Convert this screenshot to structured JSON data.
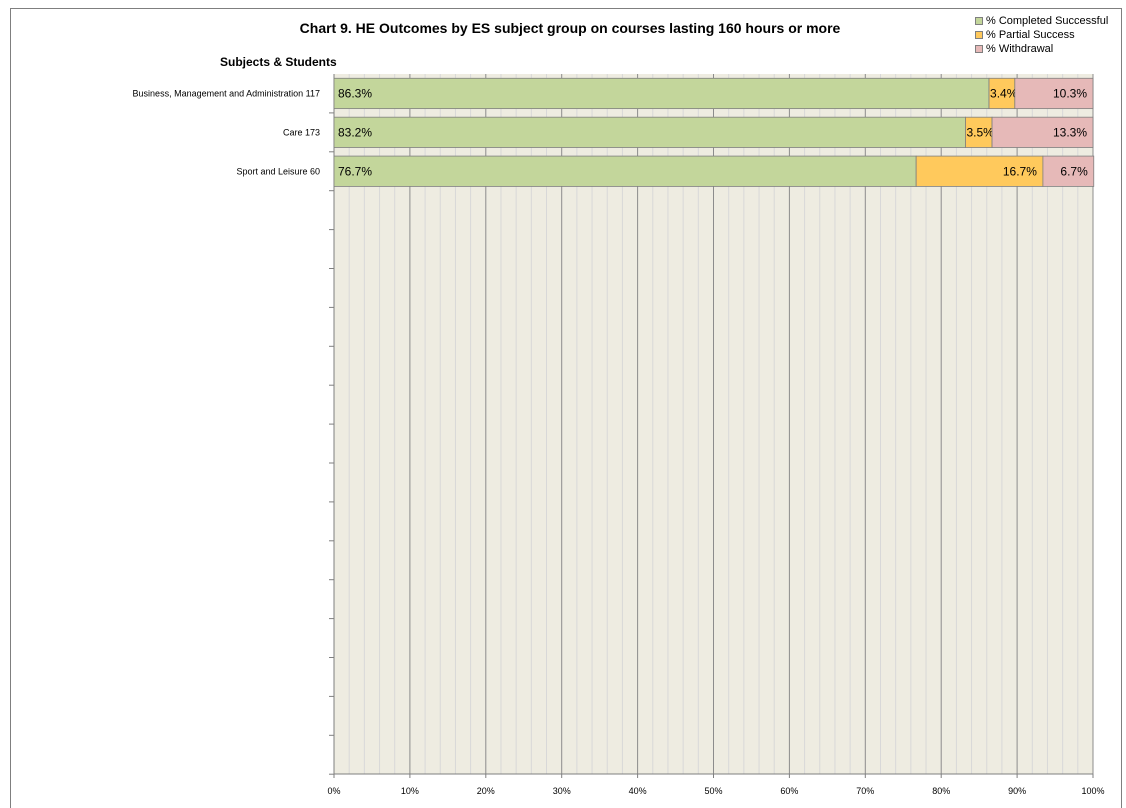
{
  "chart_data": {
    "type": "bar",
    "orientation": "horizontal",
    "stacked": true,
    "title": "Chart 9. HE Outcomes by ES subject group on courses lasting 160 hours or more",
    "group_header": "Subjects & Students",
    "categories": [
      "Business, Management and Administration  117",
      "Care  173",
      "Sport and Leisure  60"
    ],
    "series": [
      {
        "name": "% Completed Successful",
        "color": "#c3d69b",
        "values": [
          86.3,
          83.2,
          76.7
        ],
        "labels": [
          "86.3%",
          "83.2%",
          "76.7%"
        ]
      },
      {
        "name": "% Partial Success",
        "color": "#ffc95c",
        "values": [
          3.4,
          3.5,
          16.7
        ],
        "labels": [
          "3.4%",
          "3.5%",
          "16.7%"
        ]
      },
      {
        "name": "% Withdrawal",
        "color": "#e6b9b8",
        "values": [
          10.3,
          13.3,
          6.7
        ],
        "labels": [
          "10.3%",
          "13.3%",
          "6.7%"
        ]
      }
    ],
    "xlim": [
      0,
      100
    ],
    "x_ticks": [
      "0%",
      "10%",
      "20%",
      "30%",
      "40%",
      "50%",
      "60%",
      "70%",
      "80%",
      "90%",
      "100%"
    ],
    "plot_background": "#eeece1",
    "grid": true,
    "legend_position": "top-right",
    "empty_rows": 15
  }
}
